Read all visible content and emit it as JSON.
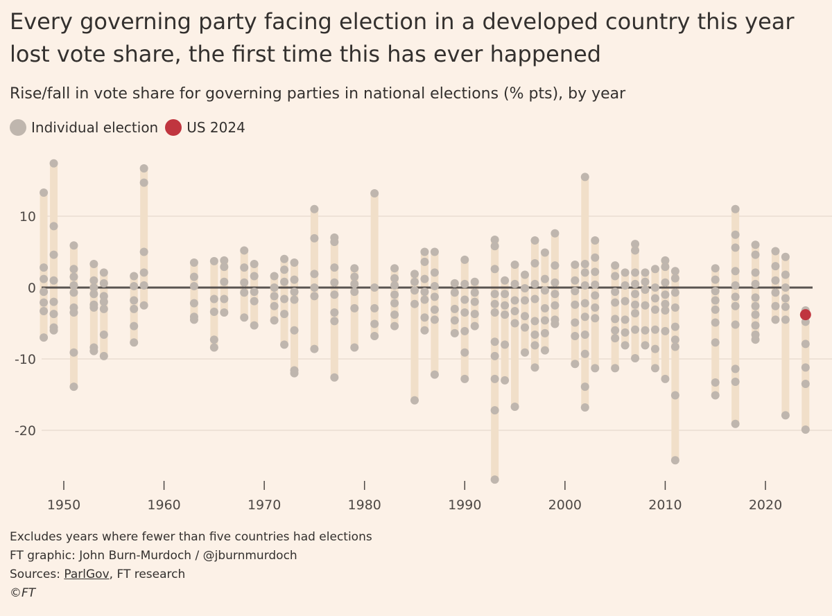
{
  "title": "Every governing party facing election in a developed country this year lost vote share, the first time this has ever happened",
  "subtitle": "Rise/fall in vote share for governing parties in national elections (% pts), by year",
  "legend": {
    "individual": {
      "label": "Individual election",
      "color": "#bfb6ae"
    },
    "us": {
      "label": "US 2024",
      "color": "#c0353f"
    }
  },
  "footer": {
    "note": "Excludes years where fewer than five countries had elections",
    "credit": "FT graphic: John Burn-Murdoch / @jburnmurdoch",
    "sources_prefix": "Sources: ",
    "sources_link": "ParlGov",
    "sources_rest": ", FT research",
    "copyright": "©FT"
  },
  "colors": {
    "background": "#fcf1e7",
    "range_bar": "#f1dfc9",
    "dot": "#bfb6ae",
    "highlight": "#c0353f",
    "zero_line": "#595350",
    "grid": "#e9ddd2"
  },
  "chart_data": {
    "type": "scatter",
    "xlabel": "",
    "ylabel": "",
    "xlim": [
      1948,
      2024
    ],
    "ylim": [
      -27,
      17
    ],
    "x_ticks": [
      1950,
      1960,
      1970,
      1980,
      1990,
      2000,
      2010,
      2020
    ],
    "y_ticks": [
      10,
      0,
      -10,
      -20
    ],
    "y_tick_labels": [
      "10",
      "0",
      "-10",
      "-20"
    ],
    "zero_line": 0,
    "highlight": {
      "name": "US 2024",
      "year": 2024,
      "value": -3.8
    },
    "series": [
      {
        "name": "Individual election",
        "points": [
          {
            "year": 1948,
            "values": [
              13.3,
              2.8,
              1.2,
              -0.6,
              -2.1,
              -3.3,
              -7.0
            ]
          },
          {
            "year": 1949,
            "values": [
              17.4,
              8.6,
              4.6,
              1.0,
              -2.0,
              -3.7,
              -5.6,
              -6.0
            ]
          },
          {
            "year": 1951,
            "values": [
              5.9,
              2.6,
              1.5,
              0.3,
              -0.7,
              -2.8,
              -3.5,
              -9.1,
              -13.9
            ]
          },
          {
            "year": 1953,
            "values": [
              3.3,
              1.0,
              0.0,
              -0.9,
              -2.4,
              -2.8,
              -8.4,
              -8.9
            ]
          },
          {
            "year": 1954,
            "values": [
              2.1,
              0.6,
              -1.2,
              -2.0,
              -3.0,
              -6.6,
              -9.6
            ]
          },
          {
            "year": 1957,
            "values": [
              1.6,
              0.2,
              -1.8,
              -3.0,
              -5.4,
              -7.7
            ]
          },
          {
            "year": 1958,
            "values": [
              16.7,
              14.7,
              5.0,
              2.1,
              0.3,
              -2.5
            ]
          },
          {
            "year": 1963,
            "values": [
              3.5,
              1.5,
              0.2,
              -2.2,
              -4.1,
              -4.5
            ]
          },
          {
            "year": 1965,
            "values": [
              3.7,
              -1.6,
              -3.4,
              -7.3,
              -8.4
            ]
          },
          {
            "year": 1966,
            "values": [
              3.8,
              2.9,
              0.8,
              -1.6,
              -3.5
            ]
          },
          {
            "year": 1968,
            "values": [
              5.2,
              2.8,
              0.7,
              -0.7,
              -4.2
            ]
          },
          {
            "year": 1969,
            "values": [
              3.3,
              1.6,
              -0.6,
              -1.9,
              -5.3
            ]
          },
          {
            "year": 1971,
            "values": [
              1.6,
              0.0,
              -1.2,
              -2.6,
              -4.6
            ]
          },
          {
            "year": 1972,
            "values": [
              4.0,
              2.5,
              0.8,
              -1.6,
              -3.7,
              -8.0
            ]
          },
          {
            "year": 1973,
            "values": [
              3.5,
              1.1,
              -0.6,
              -1.7,
              -6.0,
              -11.6,
              -12.0
            ]
          },
          {
            "year": 1975,
            "values": [
              11.0,
              6.9,
              1.9,
              0.0,
              -1.2,
              -8.6
            ]
          },
          {
            "year": 1977,
            "values": [
              7.0,
              6.4,
              2.8,
              0.7,
              -1.0,
              -3.5,
              -4.7,
              -12.6
            ]
          },
          {
            "year": 1979,
            "values": [
              2.7,
              1.5,
              0.5,
              -0.6,
              -2.9,
              -8.4
            ]
          },
          {
            "year": 1981,
            "values": [
              13.2,
              0.0,
              -2.9,
              -5.1,
              -6.8
            ]
          },
          {
            "year": 1983,
            "values": [
              2.7,
              1.3,
              0.3,
              -1.0,
              -2.2,
              -3.8,
              -5.4
            ]
          },
          {
            "year": 1985,
            "values": [
              1.9,
              0.8,
              -0.4,
              -2.3,
              -15.8
            ]
          },
          {
            "year": 1986,
            "values": [
              5.0,
              3.6,
              1.2,
              -0.6,
              -1.7,
              -4.2,
              -6.0
            ]
          },
          {
            "year": 1987,
            "values": [
              5.0,
              2.1,
              0.2,
              -1.3,
              -3.1,
              -4.5,
              -12.2
            ]
          },
          {
            "year": 1989,
            "values": [
              0.6,
              -0.7,
              -3.0,
              -4.6,
              -6.4
            ]
          },
          {
            "year": 1990,
            "values": [
              3.9,
              0.5,
              -1.7,
              -3.5,
              -6.1,
              -9.1,
              -12.8
            ]
          },
          {
            "year": 1991,
            "values": [
              0.8,
              -0.7,
              -2.0,
              -3.7,
              -5.4
            ]
          },
          {
            "year": 1993,
            "values": [
              6.7,
              5.8,
              2.6,
              -0.9,
              -2.3,
              -3.5,
              -7.6,
              -9.6,
              -12.8,
              -17.2,
              -26.9
            ]
          },
          {
            "year": 1994,
            "values": [
              1.0,
              -0.9,
              -2.5,
              -3.8,
              -8.0,
              -13.0
            ]
          },
          {
            "year": 1995,
            "values": [
              3.2,
              0.5,
              -1.8,
              -3.3,
              -5.0,
              -16.7
            ]
          },
          {
            "year": 1996,
            "values": [
              1.8,
              -0.1,
              -1.8,
              -4.0,
              -5.6,
              -9.1
            ]
          },
          {
            "year": 1997,
            "values": [
              6.6,
              3.4,
              0.5,
              -1.6,
              -4.7,
              -6.6,
              -8.1,
              -11.2
            ]
          },
          {
            "year": 1998,
            "values": [
              4.9,
              1.2,
              -0.4,
              -2.9,
              -4.6,
              -6.4,
              -8.8
            ]
          },
          {
            "year": 1999,
            "values": [
              7.6,
              3.1,
              0.7,
              -0.9,
              -2.5,
              -4.5,
              -5.1
            ]
          },
          {
            "year": 2001,
            "values": [
              3.2,
              1.0,
              -0.5,
              -2.4,
              -4.9,
              -6.8,
              -10.7
            ]
          },
          {
            "year": 2002,
            "values": [
              15.5,
              3.3,
              2.1,
              0.3,
              -2.2,
              -4.1,
              -6.6,
              -9.3,
              -13.9,
              -16.8
            ]
          },
          {
            "year": 2003,
            "values": [
              6.6,
              4.2,
              2.2,
              0.4,
              -1.1,
              -2.8,
              -4.3,
              -11.3
            ]
          },
          {
            "year": 2005,
            "values": [
              3.1,
              1.6,
              -0.6,
              -2.1,
              -4.4,
              -6.0,
              -7.1,
              -11.3
            ]
          },
          {
            "year": 2006,
            "values": [
              2.1,
              0.3,
              -1.9,
              -4.5,
              -6.3,
              -8.1
            ]
          },
          {
            "year": 2007,
            "values": [
              6.1,
              5.2,
              2.1,
              0.5,
              -0.9,
              -2.4,
              -3.6,
              -5.9,
              -9.9
            ]
          },
          {
            "year": 2008,
            "values": [
              2.1,
              0.8,
              -0.3,
              -2.5,
              -6.0,
              -8.1
            ]
          },
          {
            "year": 2009,
            "values": [
              2.6,
              0.0,
              -1.5,
              -3.1,
              -5.9,
              -8.6,
              -11.3
            ]
          },
          {
            "year": 2010,
            "values": [
              3.8,
              2.9,
              0.7,
              -1.0,
              -2.3,
              -3.2,
              -6.1,
              -12.8
            ]
          },
          {
            "year": 2011,
            "values": [
              2.3,
              1.3,
              -0.7,
              -2.8,
              -5.5,
              -7.3,
              -8.3,
              -15.1,
              -24.2
            ]
          },
          {
            "year": 2015,
            "values": [
              2.7,
              1.1,
              -0.5,
              -1.8,
              -3.1,
              -4.9,
              -7.7,
              -13.3,
              -15.1
            ]
          },
          {
            "year": 2017,
            "values": [
              11.0,
              7.4,
              5.6,
              2.3,
              0.3,
              -1.3,
              -2.6,
              -5.2,
              -11.4,
              -13.2,
              -19.1
            ]
          },
          {
            "year": 2019,
            "values": [
              6.0,
              4.6,
              2.1,
              0.5,
              -1.4,
              -2.6,
              -3.8,
              -5.3,
              -6.6,
              -7.3
            ]
          },
          {
            "year": 2021,
            "values": [
              5.1,
              3.0,
              1.0,
              -0.7,
              -2.6,
              -4.5
            ]
          },
          {
            "year": 2022,
            "values": [
              4.3,
              1.8,
              0.0,
              -1.5,
              -2.7,
              -4.5,
              -17.9
            ]
          },
          {
            "year": 2024,
            "values": [
              -3.2,
              -4.8,
              -7.9,
              -11.2,
              -13.5,
              -19.9
            ]
          }
        ]
      }
    ]
  }
}
